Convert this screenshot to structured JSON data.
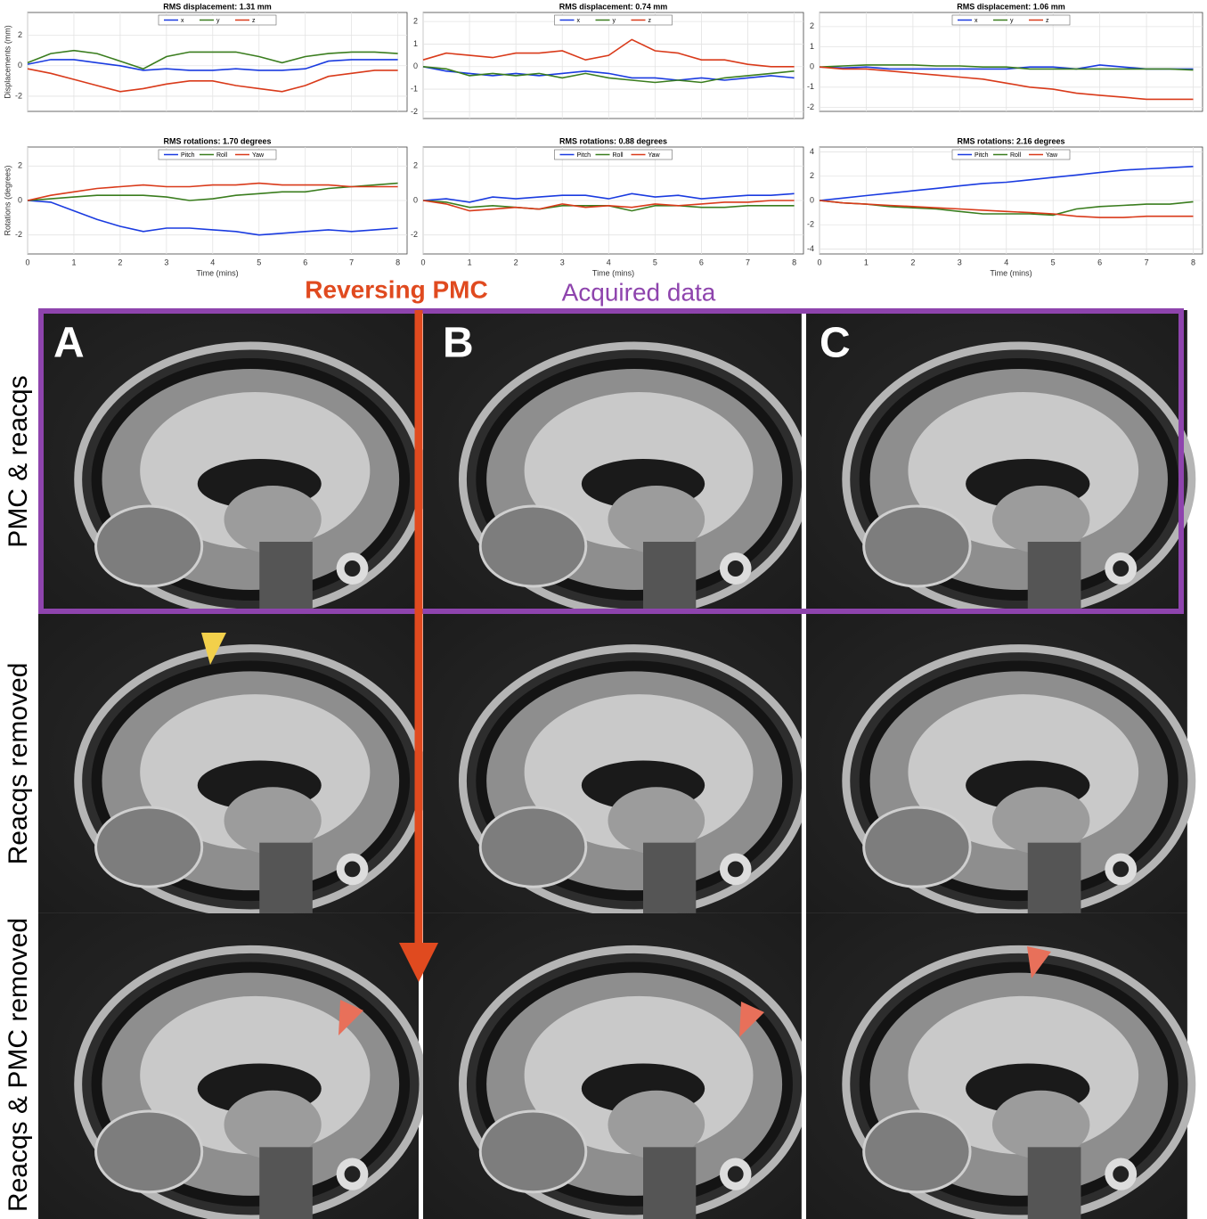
{
  "chart_data": [
    {
      "type": "line",
      "title": "RMS displacement: 1.31 mm",
      "ylabel": "Displacements (mm)",
      "legend": "upper center",
      "grid": true,
      "x": [
        0,
        0.5,
        1,
        1.5,
        2,
        2.5,
        3,
        3.5,
        4,
        4.5,
        5,
        5.5,
        6,
        6.5,
        7,
        7.5,
        8
      ],
      "xlim": [
        0,
        8.2
      ],
      "xticks": [
        0,
        1,
        2,
        3,
        4,
        5,
        6,
        7,
        8
      ],
      "ylim": [
        -3,
        3.5
      ],
      "yticks": [
        -2,
        0,
        2
      ],
      "series": [
        {
          "name": "x",
          "color": "#1a3be0",
          "values": [
            0.1,
            0.4,
            0.4,
            0.2,
            0.0,
            -0.3,
            -0.2,
            -0.3,
            -0.3,
            -0.2,
            -0.3,
            -0.3,
            -0.2,
            0.3,
            0.4,
            0.4,
            0.4
          ]
        },
        {
          "name": "y",
          "color": "#3a7d1e",
          "values": [
            0.2,
            0.8,
            1.0,
            0.8,
            0.3,
            -0.2,
            0.6,
            0.9,
            0.9,
            0.9,
            0.6,
            0.2,
            0.6,
            0.8,
            0.9,
            0.9,
            0.8
          ]
        },
        {
          "name": "z",
          "color": "#d93a1a",
          "values": [
            -0.2,
            -0.5,
            -0.9,
            -1.3,
            -1.7,
            -1.5,
            -1.2,
            -1.0,
            -1.0,
            -1.3,
            -1.5,
            -1.7,
            -1.3,
            -0.7,
            -0.5,
            -0.3,
            -0.3
          ]
        }
      ]
    },
    {
      "type": "line",
      "title": "RMS displacement: 0.74 mm",
      "legend": "upper center",
      "grid": true,
      "x": [
        0,
        0.5,
        1,
        1.5,
        2,
        2.5,
        3,
        3.5,
        4,
        4.5,
        5,
        5.5,
        6,
        6.5,
        7,
        7.5,
        8
      ],
      "xlim": [
        0,
        8.2
      ],
      "xticks": [
        0,
        1,
        2,
        3,
        4,
        5,
        6,
        7,
        8
      ],
      "ylim": [
        -2.3,
        2.4
      ],
      "yticks": [
        -2,
        -1,
        0,
        1,
        2
      ],
      "series": [
        {
          "name": "x",
          "color": "#1a3be0",
          "values": [
            0,
            -0.2,
            -0.3,
            -0.4,
            -0.3,
            -0.4,
            -0.3,
            -0.2,
            -0.3,
            -0.5,
            -0.5,
            -0.6,
            -0.5,
            -0.6,
            -0.5,
            -0.4,
            -0.5
          ]
        },
        {
          "name": "y",
          "color": "#3a7d1e",
          "values": [
            0,
            -0.1,
            -0.4,
            -0.3,
            -0.4,
            -0.3,
            -0.5,
            -0.3,
            -0.5,
            -0.6,
            -0.7,
            -0.6,
            -0.7,
            -0.5,
            -0.4,
            -0.3,
            -0.2
          ]
        },
        {
          "name": "z",
          "color": "#d93a1a",
          "values": [
            0.3,
            0.6,
            0.5,
            0.4,
            0.6,
            0.6,
            0.7,
            0.3,
            0.5,
            1.2,
            0.7,
            0.6,
            0.3,
            0.3,
            0.1,
            0.0,
            0.0
          ]
        }
      ]
    },
    {
      "type": "line",
      "title": "RMS displacement: 1.06 mm",
      "legend": "upper center",
      "grid": true,
      "x": [
        0,
        0.5,
        1,
        1.5,
        2,
        2.5,
        3,
        3.5,
        4,
        4.5,
        5,
        5.5,
        6,
        6.5,
        7,
        7.5,
        8
      ],
      "xlim": [
        0,
        8.2
      ],
      "xticks": [
        0,
        1,
        2,
        3,
        4,
        5,
        6,
        7,
        8
      ],
      "ylim": [
        -2.2,
        2.7
      ],
      "yticks": [
        -2,
        -1,
        0,
        1,
        2
      ],
      "series": [
        {
          "name": "x",
          "color": "#1a3be0",
          "values": [
            0,
            -0.05,
            0,
            -0.1,
            -0.1,
            -0.1,
            -0.1,
            -0.1,
            -0.1,
            0,
            0,
            -0.1,
            0.1,
            0,
            -0.1,
            -0.1,
            -0.1
          ]
        },
        {
          "name": "y",
          "color": "#3a7d1e",
          "values": [
            0,
            0.05,
            0.1,
            0.1,
            0.1,
            0.05,
            0.05,
            0,
            0,
            -0.1,
            -0.1,
            -0.1,
            -0.1,
            -0.1,
            -0.1,
            -0.1,
            -0.15
          ]
        },
        {
          "name": "z",
          "color": "#d93a1a",
          "values": [
            0,
            -0.1,
            -0.1,
            -0.2,
            -0.3,
            -0.4,
            -0.5,
            -0.6,
            -0.8,
            -1.0,
            -1.1,
            -1.3,
            -1.4,
            -1.5,
            -1.6,
            -1.6,
            -1.6
          ]
        }
      ]
    },
    {
      "type": "line",
      "title": "RMS rotations: 1.70 degrees",
      "ylabel": "Rotations (degrees)",
      "xlabel": "Time (mins)",
      "legend": "upper center",
      "grid": true,
      "x": [
        0,
        0.5,
        1,
        1.5,
        2,
        2.5,
        3,
        3.5,
        4,
        4.5,
        5,
        5.5,
        6,
        6.5,
        7,
        7.5,
        8
      ],
      "xlim": [
        0,
        8.2
      ],
      "xticks": [
        0,
        1,
        2,
        3,
        4,
        5,
        6,
        7,
        8
      ],
      "ylim": [
        -3.1,
        3.1
      ],
      "yticks": [
        -2,
        0,
        2
      ],
      "series": [
        {
          "name": "Pitch",
          "color": "#1a3be0",
          "values": [
            0,
            -0.1,
            -0.6,
            -1.1,
            -1.5,
            -1.8,
            -1.6,
            -1.6,
            -1.7,
            -1.8,
            -2.0,
            -1.9,
            -1.8,
            -1.7,
            -1.8,
            -1.7,
            -1.6
          ]
        },
        {
          "name": "Roll",
          "color": "#3a7d1e",
          "values": [
            0,
            0.1,
            0.2,
            0.3,
            0.3,
            0.3,
            0.2,
            0.0,
            0.1,
            0.3,
            0.4,
            0.5,
            0.5,
            0.7,
            0.8,
            0.9,
            1.0
          ]
        },
        {
          "name": "Yaw",
          "color": "#d93a1a",
          "values": [
            0,
            0.3,
            0.5,
            0.7,
            0.8,
            0.9,
            0.8,
            0.8,
            0.9,
            0.9,
            1.0,
            0.9,
            0.9,
            0.9,
            0.8,
            0.8,
            0.8
          ]
        }
      ]
    },
    {
      "type": "line",
      "title": "RMS rotations: 0.88 degrees",
      "xlabel": "Time (mins)",
      "legend": "upper center",
      "grid": true,
      "x": [
        0,
        0.5,
        1,
        1.5,
        2,
        2.5,
        3,
        3.5,
        4,
        4.5,
        5,
        5.5,
        6,
        6.5,
        7,
        7.5,
        8
      ],
      "xlim": [
        0,
        8.2
      ],
      "xticks": [
        0,
        1,
        2,
        3,
        4,
        5,
        6,
        7,
        8
      ],
      "ylim": [
        -3.1,
        3.1
      ],
      "yticks": [
        -2,
        0,
        2
      ],
      "series": [
        {
          "name": "Pitch",
          "color": "#1a3be0",
          "values": [
            0,
            0.1,
            -0.1,
            0.2,
            0.1,
            0.2,
            0.3,
            0.3,
            0.1,
            0.4,
            0.2,
            0.3,
            0.1,
            0.2,
            0.3,
            0.3,
            0.4
          ]
        },
        {
          "name": "Roll",
          "color": "#3a7d1e",
          "values": [
            0,
            -0.1,
            -0.4,
            -0.3,
            -0.4,
            -0.5,
            -0.3,
            -0.3,
            -0.3,
            -0.6,
            -0.3,
            -0.3,
            -0.4,
            -0.4,
            -0.3,
            -0.3,
            -0.3
          ]
        },
        {
          "name": "Yaw",
          "color": "#d93a1a",
          "values": [
            0,
            -0.2,
            -0.6,
            -0.5,
            -0.4,
            -0.5,
            -0.2,
            -0.4,
            -0.3,
            -0.4,
            -0.2,
            -0.3,
            -0.2,
            -0.1,
            -0.1,
            0,
            0
          ]
        }
      ]
    },
    {
      "type": "line",
      "title": "RMS rotations: 2.16 degrees",
      "xlabel": "Time (mins)",
      "legend": "upper center",
      "grid": true,
      "x": [
        0,
        0.5,
        1,
        1.5,
        2,
        2.5,
        3,
        3.5,
        4,
        4.5,
        5,
        5.5,
        6,
        6.5,
        7,
        7.5,
        8
      ],
      "xlim": [
        0,
        8.2
      ],
      "xticks": [
        0,
        1,
        2,
        3,
        4,
        5,
        6,
        7,
        8
      ],
      "ylim": [
        -4.4,
        4.4
      ],
      "yticks": [
        -4,
        -2,
        0,
        2,
        4
      ],
      "series": [
        {
          "name": "Pitch",
          "color": "#1a3be0",
          "values": [
            0,
            0.2,
            0.4,
            0.6,
            0.8,
            1.0,
            1.2,
            1.4,
            1.5,
            1.7,
            1.9,
            2.1,
            2.3,
            2.5,
            2.6,
            2.7,
            2.8
          ]
        },
        {
          "name": "Roll",
          "color": "#3a7d1e",
          "values": [
            0,
            -0.2,
            -0.3,
            -0.5,
            -0.6,
            -0.7,
            -0.9,
            -1.1,
            -1.1,
            -1.1,
            -1.2,
            -0.7,
            -0.5,
            -0.4,
            -0.3,
            -0.3,
            -0.1
          ]
        },
        {
          "name": "Yaw",
          "color": "#d93a1a",
          "values": [
            0,
            -0.2,
            -0.3,
            -0.4,
            -0.5,
            -0.6,
            -0.7,
            -0.8,
            -0.9,
            -1.0,
            -1.1,
            -1.3,
            -1.4,
            -1.4,
            -1.3,
            -1.3,
            -1.3
          ]
        }
      ]
    }
  ],
  "figure": {
    "arrow_label": "Reversing PMC",
    "box_label": "Acquired data",
    "columns": [
      "A",
      "B",
      "C"
    ],
    "rows": [
      "PMC & reacqs",
      "Reacqs removed",
      "Reacqs & PMC removed"
    ]
  }
}
